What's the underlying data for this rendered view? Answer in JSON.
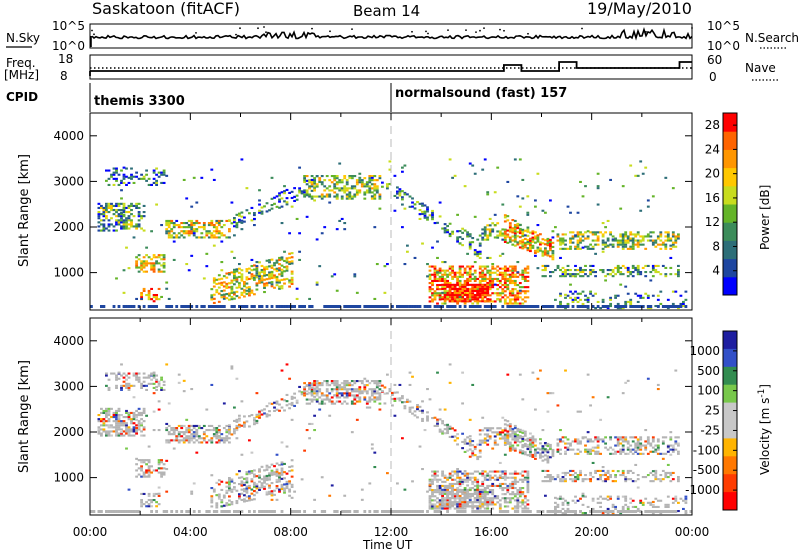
{
  "header": {
    "station": "Saskatoon (fitACF)",
    "beam": "Beam 14",
    "date": "19/May/2010"
  },
  "noise_panel": {
    "left_label": "N.Sky",
    "left_ticks": [
      "10^5",
      "10^0"
    ],
    "right_ticks": [
      "10^5",
      "10^0"
    ],
    "right_label": "N.Search"
  },
  "freq_panel": {
    "left_label_line1": "Freq.",
    "left_label_line2": "[MHz]",
    "left_ticks": [
      "18",
      "8"
    ],
    "right_ticks": [
      "60",
      "0"
    ],
    "right_label": "Nave",
    "cpid_label": "CPID"
  },
  "cpid": {
    "mode1": "themis 3300",
    "mode2": "normalsound (fast) 157"
  },
  "colors": {
    "scale": [
      "#0000ff",
      "#1e46a0",
      "#2d6e78",
      "#3c8c5a",
      "#64b428",
      "#c8dc1e",
      "#ffc800",
      "#ff9600",
      "#ff6400",
      "#ff0000"
    ],
    "vel_scale": [
      "#1e1ea0",
      "#3250c8",
      "#328c50",
      "#78c84b",
      "#c8c8c8",
      "#c8c8c8",
      "#ffb400",
      "#ff7800",
      "#ff3c00",
      "#ff0000"
    ],
    "ground": "#b4b4b4"
  },
  "chart_data": [
    {
      "type": "heatmap",
      "title": "Power",
      "ylabel": "Slant Range [km]",
      "xlabel": "Time UT",
      "x_ticks": [
        "00:00",
        "04:00",
        "08:00",
        "12:00",
        "16:00",
        "20:00",
        "00:00"
      ],
      "y_ticks": [
        "1000",
        "2000",
        "3000",
        "4000"
      ],
      "ylim": [
        180,
        4500
      ],
      "xlim_hours": [
        0,
        24
      ],
      "colorbar": {
        "label": "Power [dB]",
        "ticks": [
          "4",
          "8",
          "12",
          "16",
          "20",
          "24",
          "28"
        ],
        "range": [
          0,
          30
        ]
      }
    },
    {
      "type": "heatmap",
      "title": "Velocity",
      "ylabel": "Slant Range [km]",
      "xlabel": "Time UT",
      "x_ticks": [
        "00:00",
        "04:00",
        "08:00",
        "12:00",
        "16:00",
        "20:00",
        "00:00"
      ],
      "y_ticks": [
        "1000",
        "2000",
        "3000",
        "4000"
      ],
      "ylim": [
        180,
        4500
      ],
      "xlim_hours": [
        0,
        24
      ],
      "colorbar": {
        "label": "Velocity [m s",
        "label_sup": "-1",
        "label_end": "]",
        "ticks": [
          "1000",
          "500",
          "100",
          "25",
          "-25",
          "-100",
          "-500",
          "-1000"
        ]
      }
    }
  ]
}
